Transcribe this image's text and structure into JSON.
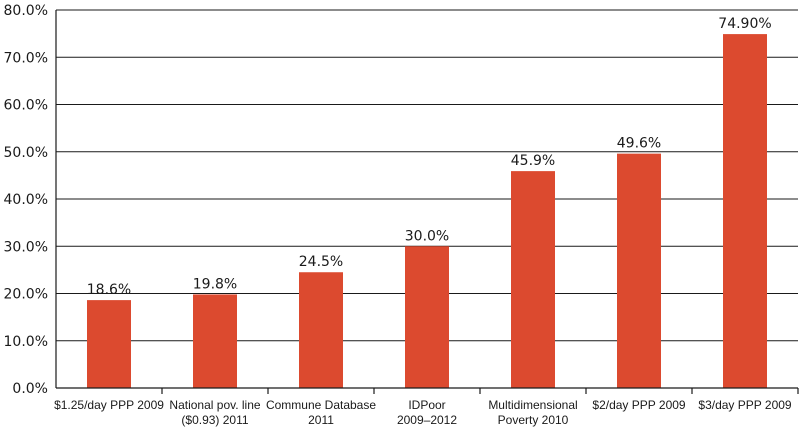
{
  "chart_data": {
    "type": "bar",
    "title": "",
    "xlabel": "",
    "ylabel": "",
    "ylim": [
      0,
      80
    ],
    "y_ticks": [
      "0.0%",
      "10.0%",
      "20.0%",
      "30.0%",
      "40.0%",
      "50.0%",
      "60.0%",
      "70.0%",
      "80.0%"
    ],
    "grid": true,
    "bar_color": "#dc4a2f",
    "categories": [
      [
        "$1.25/day PPP 2009"
      ],
      [
        "National pov. line",
        "($0.93) 2011"
      ],
      [
        "Commune Database",
        "2011"
      ],
      [
        "IDPoor",
        "2009–2012"
      ],
      [
        "Multidimensional",
        "Poverty 2010"
      ],
      [
        "$2/day PPP 2009"
      ],
      [
        "$3/day PPP 2009"
      ]
    ],
    "values": [
      18.6,
      19.8,
      24.5,
      30.0,
      45.9,
      49.6,
      74.9
    ],
    "value_labels": [
      "18.6%",
      "19.8%",
      "24.5%",
      "30.0%",
      "45.9%",
      "49.6%",
      "74.90%"
    ]
  }
}
